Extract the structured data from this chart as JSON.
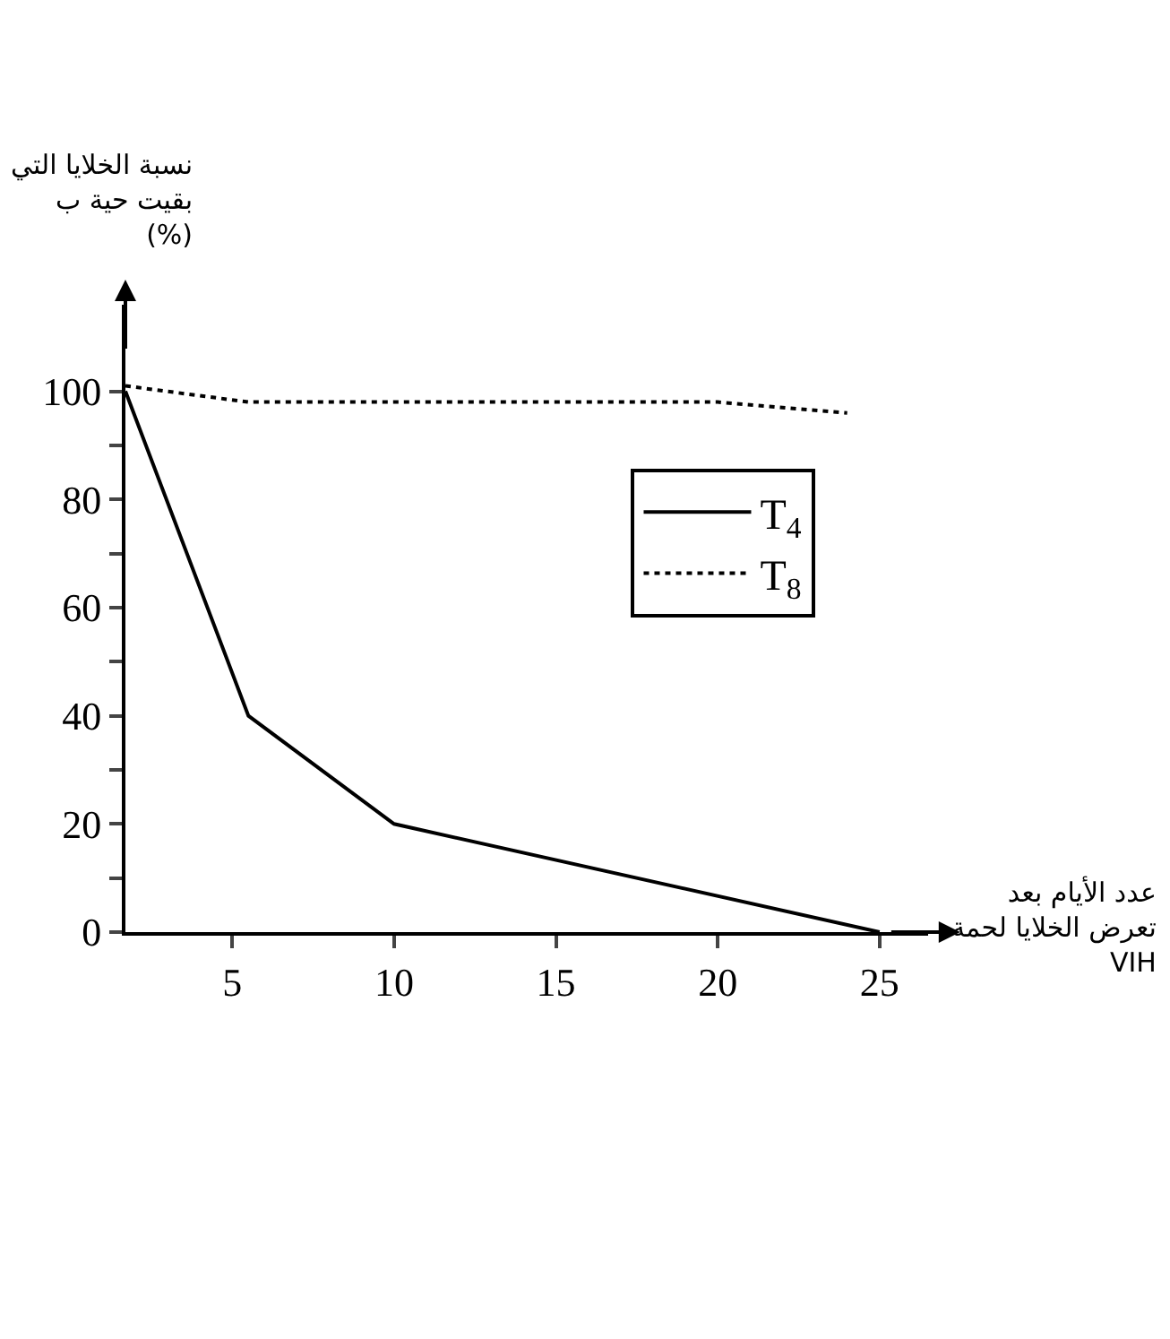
{
  "chart_data": {
    "type": "line",
    "ylabel": "نسبة الخلايا التي\nبقيت حية ب\n(%)",
    "xlabel": "عدد الأيام بعد\nتعرض الخلايا لحمة\nVIH",
    "xlim": [
      1.7,
      26.5
    ],
    "xticks": [
      5,
      10,
      15,
      20,
      25
    ],
    "ylim": [
      0,
      116
    ],
    "yticks": [
      0,
      {
        "value": 10,
        "label": null
      },
      20,
      {
        "value": 30,
        "label": null
      },
      40,
      {
        "value": 50,
        "label": null
      },
      60,
      {
        "value": 70,
        "label": null
      },
      80,
      {
        "value": 90,
        "label": null
      },
      100
    ],
    "legend": "right",
    "marker": "none",
    "series": [
      {
        "name": "T$_{4}$",
        "color": "#000000",
        "line_style": "solid",
        "x": [
          1.7,
          5.5,
          10,
          25
        ],
        "values": [
          100,
          40,
          20,
          0
        ]
      },
      {
        "name": "T$_{8}$",
        "color": "#000000",
        "line_style": "dotted",
        "x": [
          1.7,
          5.5,
          20,
          24
        ],
        "values": [
          101,
          98,
          98,
          96
        ]
      }
    ]
  }
}
